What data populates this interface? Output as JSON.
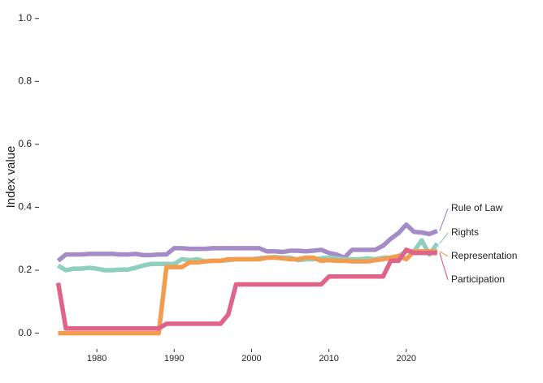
{
  "chart_data": {
    "type": "line",
    "y_label": "Index value",
    "x": [
      1975,
      1976,
      1977,
      1978,
      1979,
      1980,
      1981,
      1982,
      1983,
      1984,
      1985,
      1986,
      1987,
      1988,
      1989,
      1990,
      1991,
      1992,
      1993,
      1994,
      1995,
      1996,
      1997,
      1998,
      1999,
      2000,
      2001,
      2002,
      2003,
      2004,
      2005,
      2006,
      2007,
      2008,
      2009,
      2010,
      2011,
      2012,
      2013,
      2014,
      2015,
      2016,
      2017,
      2018,
      2019,
      2020,
      2021,
      2022,
      2023,
      2024
    ],
    "series": [
      {
        "name": "Rule of Law",
        "color": "#a58cc8",
        "values": [
          0.23,
          0.25,
          0.25,
          0.25,
          0.252,
          0.252,
          0.252,
          0.252,
          0.25,
          0.25,
          0.252,
          0.248,
          0.248,
          0.25,
          0.25,
          0.27,
          0.27,
          0.268,
          0.268,
          0.268,
          0.27,
          0.27,
          0.27,
          0.27,
          0.27,
          0.27,
          0.27,
          0.26,
          0.26,
          0.258,
          0.262,
          0.262,
          0.26,
          0.262,
          0.265,
          0.255,
          0.25,
          0.24,
          0.265,
          0.265,
          0.265,
          0.265,
          0.278,
          0.3,
          0.318,
          0.345,
          0.322,
          0.32,
          0.315,
          0.325
        ]
      },
      {
        "name": "Rights",
        "color": "#8ecfc0",
        "values": [
          0.215,
          0.2,
          0.205,
          0.205,
          0.208,
          0.205,
          0.2,
          0.2,
          0.202,
          0.202,
          0.208,
          0.215,
          0.22,
          0.22,
          0.22,
          0.22,
          0.235,
          0.232,
          0.235,
          0.228,
          0.23,
          0.23,
          0.232,
          0.235,
          0.235,
          0.235,
          0.238,
          0.24,
          0.242,
          0.24,
          0.24,
          0.232,
          0.235,
          0.235,
          0.238,
          0.24,
          0.238,
          0.235,
          0.235,
          0.235,
          0.238,
          0.235,
          0.24,
          0.24,
          0.245,
          0.26,
          0.26,
          0.295,
          0.25,
          0.285
        ]
      },
      {
        "name": "Representation",
        "color": "#f39c50",
        "values": [
          0,
          0,
          0,
          0,
          0,
          0,
          0,
          0,
          0,
          0,
          0,
          0,
          0,
          0,
          0.21,
          0.21,
          0.21,
          0.225,
          0.225,
          0.228,
          0.23,
          0.23,
          0.235,
          0.235,
          0.235,
          0.235,
          0.235,
          0.24,
          0.24,
          0.238,
          0.235,
          0.235,
          0.24,
          0.24,
          0.23,
          0.232,
          0.23,
          0.23,
          0.228,
          0.228,
          0.228,
          0.232,
          0.235,
          0.24,
          0.245,
          0.235,
          0.26,
          0.26,
          0.26,
          0.26
        ]
      },
      {
        "name": "Participation",
        "color": "#e0648a",
        "values": [
          0.16,
          0.015,
          0.015,
          0.015,
          0.015,
          0.015,
          0.015,
          0.015,
          0.015,
          0.015,
          0.015,
          0.015,
          0.015,
          0.015,
          0.03,
          0.03,
          0.03,
          0.03,
          0.03,
          0.03,
          0.03,
          0.03,
          0.06,
          0.155,
          0.155,
          0.155,
          0.155,
          0.155,
          0.155,
          0.155,
          0.155,
          0.155,
          0.155,
          0.155,
          0.155,
          0.18,
          0.18,
          0.18,
          0.18,
          0.18,
          0.18,
          0.18,
          0.18,
          0.23,
          0.23,
          0.265,
          0.255,
          0.255,
          0.255,
          0.255
        ]
      }
    ],
    "xlim": [
      1972,
      2034
    ],
    "xticks": [
      1980,
      1990,
      2000,
      2010,
      2020
    ],
    "ylim": [
      -0.05,
      1.02
    ],
    "yticks": [
      {
        "value": 0,
        "label": "0.0"
      },
      {
        "value": 0.2,
        "label": "0.2"
      },
      {
        "value": 0.4,
        "label": "0.4"
      },
      {
        "value": 0.6,
        "label": "0.6"
      },
      {
        "value": 0.8,
        "label": "0.8"
      },
      {
        "value": 1,
        "label": "1.0"
      }
    ]
  }
}
